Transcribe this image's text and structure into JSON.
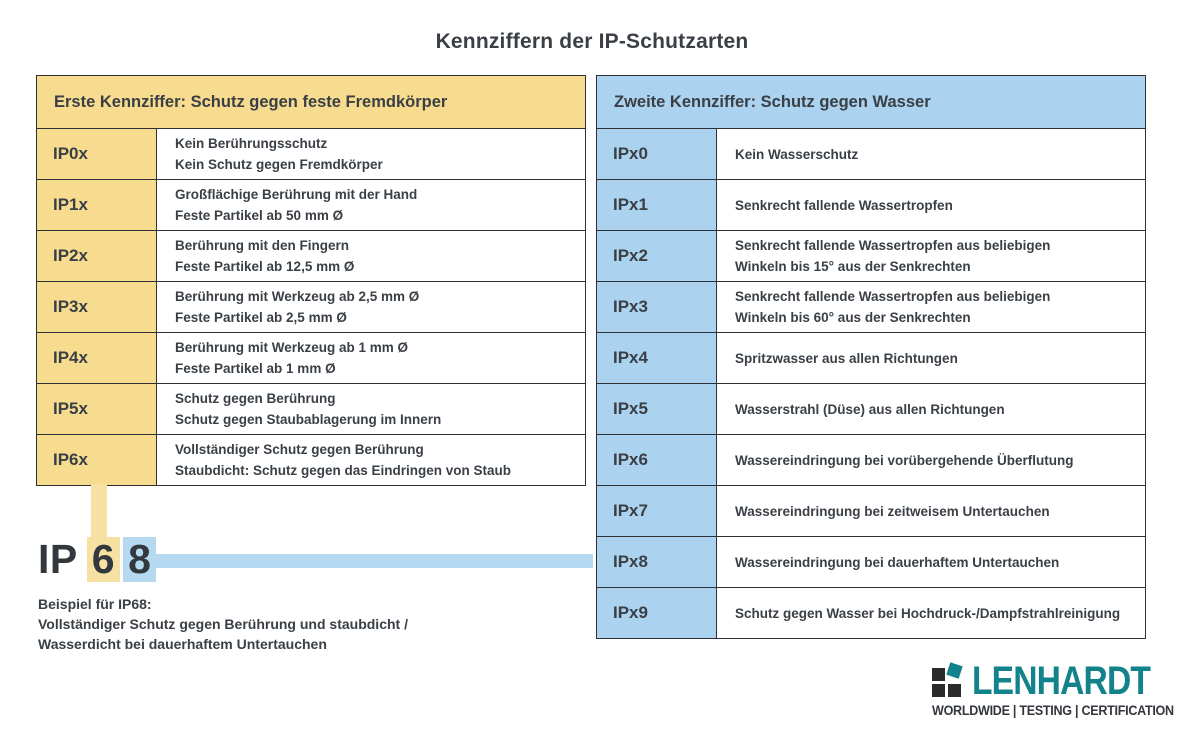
{
  "title": "Kennziffern der IP-Schutzarten",
  "left_table": {
    "header": "Erste Kennziffer: Schutz gegen feste Fremdkörper",
    "rows": [
      {
        "code": "IP0x",
        "line1": "Kein Berührungsschutz",
        "line2": "Kein Schutz gegen Fremdkörper"
      },
      {
        "code": "IP1x",
        "line1": "Großflächige Berührung mit der Hand",
        "line2": "Feste Partikel ab 50 mm Ø"
      },
      {
        "code": "IP2x",
        "line1": "Berührung mit den Fingern",
        "line2": "Feste Partikel ab 12,5 mm Ø"
      },
      {
        "code": "IP3x",
        "line1": "Berührung mit Werkzeug ab 2,5 mm Ø",
        "line2": "Feste Partikel ab 2,5 mm Ø"
      },
      {
        "code": "IP4x",
        "line1": "Berührung mit Werkzeug ab 1 mm Ø",
        "line2": "Feste Partikel ab 1 mm Ø"
      },
      {
        "code": "IP5x",
        "line1": "Schutz gegen Berührung",
        "line2": "Schutz gegen Staubablagerung im Innern"
      },
      {
        "code": "IP6x",
        "line1": "Vollständiger Schutz gegen Berührung",
        "line2": "Staubdicht: Schutz gegen das Eindringen von Staub"
      }
    ]
  },
  "right_table": {
    "header": "Zweite Kennziffer: Schutz gegen Wasser",
    "rows": [
      {
        "code": "IPx0",
        "line1": "Kein Wasserschutz",
        "line2": ""
      },
      {
        "code": "IPx1",
        "line1": "Senkrecht fallende Wassertropfen",
        "line2": ""
      },
      {
        "code": "IPx2",
        "line1": "Senkrecht fallende Wassertropfen aus beliebigen",
        "line2": "Winkeln bis 15° aus der Senkrechten"
      },
      {
        "code": "IPx3",
        "line1": "Senkrecht fallende Wassertropfen aus beliebigen",
        "line2": "Winkeln bis 60° aus der Senkrechten"
      },
      {
        "code": "IPx4",
        "line1": "Spritzwasser aus allen Richtungen",
        "line2": ""
      },
      {
        "code": "IPx5",
        "line1": "Wasserstrahl (Düse) aus allen Richtungen",
        "line2": ""
      },
      {
        "code": "IPx6",
        "line1": "Wassereindringung bei vorübergehende Überflutung",
        "line2": ""
      },
      {
        "code": "IPx7",
        "line1": "Wassereindringung bei zeitweisem Untertauchen",
        "line2": ""
      },
      {
        "code": "IPx8",
        "line1": "Wassereindringung bei dauerhaftem Untertauchen",
        "line2": ""
      },
      {
        "code": "IPx9",
        "line1": "Schutz gegen Wasser bei Hochdruck-/Dampfstrahlreinigung",
        "line2": ""
      }
    ]
  },
  "example": {
    "prefix": "IP",
    "digit_first": "6",
    "digit_second": "8",
    "caption_line1": "Beispiel für IP68:",
    "caption_line2": "Vollständiger Schutz gegen Berührung und staubdicht /",
    "caption_line3": "Wasserdicht bei dauerhaftem Untertauchen"
  },
  "logo": {
    "name": "LENHARDT",
    "tagline": "WORLDWIDE | TESTING | CERTIFICATION"
  },
  "colors": {
    "yellow": "#F7DC8F",
    "yellow_highlight": "#F6E1A2",
    "blue": "#ABD2EE",
    "blue_highlight": "#B6D9F2",
    "teal": "#12838A",
    "text": "#3A4046",
    "border": "#2D3136"
  }
}
